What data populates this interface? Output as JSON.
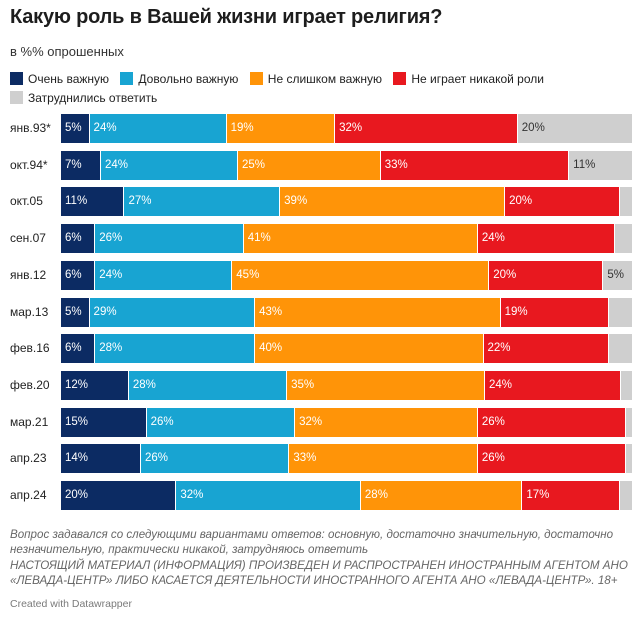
{
  "header": {
    "title": "Какую роль в Вашей жизни играет религия?",
    "subtitle": "в %% опрошенных"
  },
  "legend": [
    {
      "label": "Очень важную",
      "color": "#0c2b63"
    },
    {
      "label": "Довольно важную",
      "color": "#18a4d2"
    },
    {
      "label": "Не слишком важную",
      "color": "#ff9408"
    },
    {
      "label": "Не играет никакой роли",
      "color": "#e8181f"
    },
    {
      "label": "Затруднились ответить",
      "color": "#cfcfcf"
    }
  ],
  "chart_data": {
    "type": "bar",
    "orientation": "horizontal",
    "stacked": true,
    "xlim": [
      0,
      100
    ],
    "grid": false,
    "legend_position": "top",
    "categories": [
      "янв.93*",
      "окт.94*",
      "окт.05",
      "сен.07",
      "янв.12",
      "мар.13",
      "фев.16",
      "фев.20",
      "мар.21",
      "апр.23",
      "апр.24"
    ],
    "series": [
      {
        "name": "Очень важную",
        "key": "very",
        "color": "#0c2b63",
        "values": [
          5,
          7,
          11,
          6,
          6,
          5,
          6,
          12,
          15,
          14,
          20
        ],
        "labels": [
          "5%",
          "7%",
          "11%",
          "6%",
          "6%",
          "5%",
          "6%",
          "12%",
          "15%",
          "14%",
          "20%"
        ]
      },
      {
        "name": "Довольно важную",
        "key": "fairly",
        "color": "#18a4d2",
        "values": [
          24,
          24,
          27,
          26,
          24,
          29,
          28,
          28,
          26,
          26,
          32
        ],
        "labels": [
          "24%",
          "24%",
          "27%",
          "26%",
          "24%",
          "29%",
          "28%",
          "28%",
          "26%",
          "26%",
          "32%"
        ]
      },
      {
        "name": "Не слишком важную",
        "key": "notvery",
        "color": "#ff9408",
        "values": [
          19,
          25,
          39,
          41,
          45,
          43,
          40,
          35,
          32,
          33,
          28
        ],
        "labels": [
          "19%",
          "25%",
          "39%",
          "41%",
          "45%",
          "43%",
          "40%",
          "35%",
          "32%",
          "33%",
          "28%"
        ]
      },
      {
        "name": "Не играет никакой роли",
        "key": "none",
        "color": "#e8181f",
        "values": [
          32,
          33,
          20,
          24,
          20,
          19,
          22,
          24,
          26,
          26,
          17
        ],
        "labels": [
          "32%",
          "33%",
          "20%",
          "24%",
          "20%",
          "19%",
          "22%",
          "24%",
          "26%",
          "26%",
          "17%"
        ]
      },
      {
        "name": "Затруднились ответить",
        "key": "dk",
        "color": "#cfcfcf",
        "values": [
          20,
          11,
          2,
          3,
          5,
          4,
          4,
          2,
          1,
          1,
          2
        ],
        "labels": [
          "20%",
          "11%",
          "",
          "",
          "5%",
          "",
          "",
          "",
          "",
          "",
          ""
        ]
      }
    ]
  },
  "footer": {
    "note_question": "Вопрос задавался со следующими вариантами ответов: основную, достаточно значительную, достаточно незначительную, практически никакой, затрудняюсь ответить",
    "note_agent": "НАСТОЯЩИЙ МАТЕРИАЛ (ИНФОРМАЦИЯ) ПРОИЗВЕДЕН И РАСПРОСТРАНЕН ИНОСТРАННЫМ АГЕНТОМ АНО «ЛЕВАДА-ЦЕНТР» ЛИБО КАСАЕТСЯ ДЕЯТЕЛЬНОСТИ ИНОСТРАННОГО АГЕНТА АНО «ЛЕВАДА-ЦЕНТР». 18+",
    "credit": "Created with Datawrapper"
  }
}
